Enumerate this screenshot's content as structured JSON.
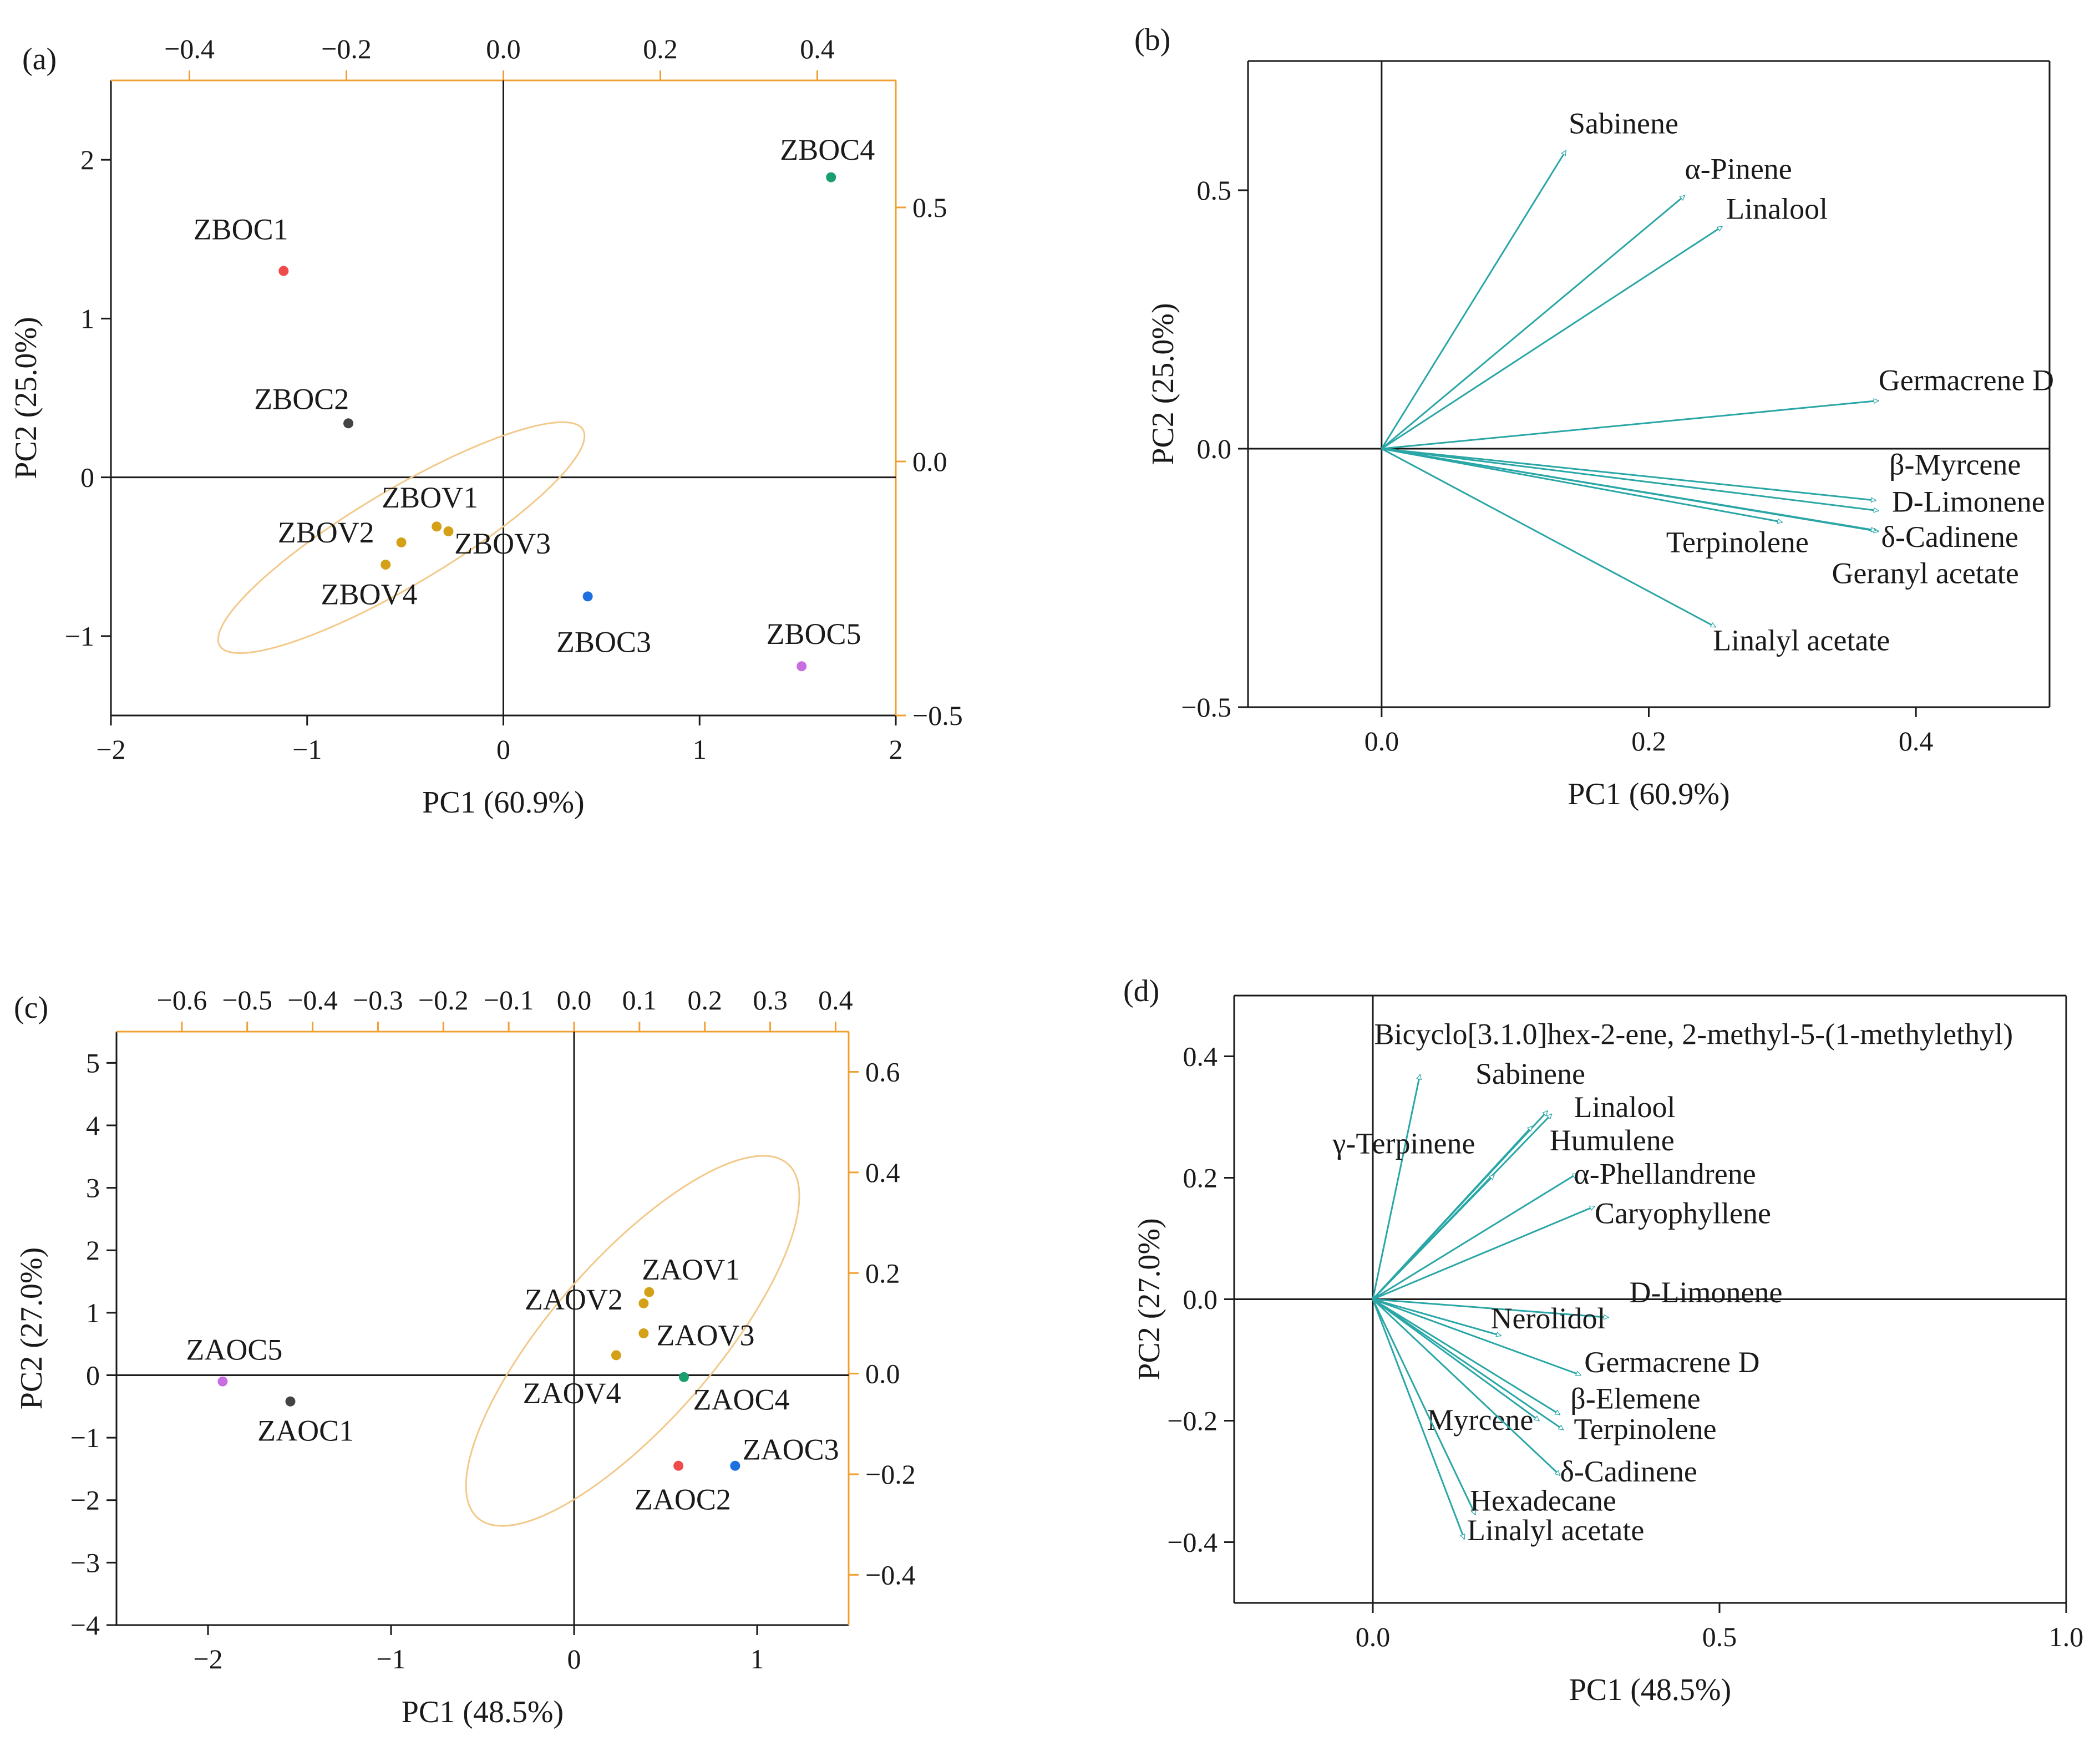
{
  "panels": [
    {
      "id": "a",
      "label": "(a)",
      "type": "biplot-scores",
      "xlabel": "PC1 (60.9%)",
      "ylabel": "PC2 (25.0%)",
      "xlim": [
        -2,
        2
      ],
      "ylim": [
        -1.5,
        2.5
      ],
      "xticks": [
        {
          "v": -2,
          "t": "−2"
        },
        {
          "v": -1,
          "t": "−1"
        },
        {
          "v": 0,
          "t": "0"
        },
        {
          "v": 1,
          "t": "1"
        },
        {
          "v": 2,
          "t": "2"
        }
      ],
      "yticks": [
        {
          "v": -1,
          "t": "−1"
        },
        {
          "v": 0,
          "t": "0"
        },
        {
          "v": 1,
          "t": "1"
        },
        {
          "v": 2,
          "t": "2"
        }
      ],
      "top_lim": [
        -0.5,
        0.5
      ],
      "top_ticks": [
        {
          "v": -0.4,
          "t": "−0.4"
        },
        {
          "v": -0.2,
          "t": "−0.2"
        },
        {
          "v": 0.0,
          "t": "0.0"
        },
        {
          "v": 0.2,
          "t": "0.2"
        },
        {
          "v": 0.4,
          "t": "0.4"
        }
      ],
      "right_lim": [
        -0.5,
        0.75
      ],
      "right_ticks": [
        {
          "v": -0.5,
          "t": "−0.5"
        },
        {
          "v": 0.0,
          "t": "0.0"
        },
        {
          "v": 0.5,
          "t": "0.5"
        }
      ],
      "ellipse": {
        "cx": -0.52,
        "cy": -0.38,
        "rx": 1.15,
        "ry": 0.28,
        "angle_deg": 37
      },
      "points": [
        {
          "name": "ZBOC1",
          "x": -1.12,
          "y": 1.3,
          "color": "#f04a4a",
          "lx": -1.58,
          "ly": 1.5
        },
        {
          "name": "ZBOC2",
          "x": -0.79,
          "y": 0.34,
          "color": "#444444",
          "lx": -1.27,
          "ly": 0.43
        },
        {
          "name": "ZBOV1",
          "x": -0.34,
          "y": -0.31,
          "color": "#d4a017",
          "lx": -0.62,
          "ly": -0.19
        },
        {
          "name": "ZBOV2",
          "x": -0.52,
          "y": -0.41,
          "color": "#d4a017",
          "lx": -1.15,
          "ly": -0.41
        },
        {
          "name": "ZBOV3",
          "x": -0.28,
          "y": -0.34,
          "color": "#d4a017",
          "lx": -0.25,
          "ly": -0.48
        },
        {
          "name": "ZBOV4",
          "x": -0.6,
          "y": -0.55,
          "color": "#d4a017",
          "lx": -0.93,
          "ly": -0.8
        },
        {
          "name": "ZBOC3",
          "x": 0.43,
          "y": -0.75,
          "color": "#1e6fe0",
          "lx": 0.27,
          "ly": -1.1
        },
        {
          "name": "ZBOC4",
          "x": 1.67,
          "y": 1.89,
          "color": "#1a9e6e",
          "lx": 1.41,
          "ly": 2.0
        },
        {
          "name": "ZBOC5",
          "x": 1.52,
          "y": -1.19,
          "color": "#c86ee0",
          "lx": 1.34,
          "ly": -1.05
        }
      ]
    },
    {
      "id": "b",
      "label": "(b)",
      "type": "biplot-loadings",
      "xlabel": "PC1 (60.9%)",
      "ylabel": "PC2 (25.0%)",
      "xlim": [
        -0.1,
        0.5
      ],
      "ylim": [
        -0.5,
        0.75
      ],
      "xticks": [
        {
          "v": 0.0,
          "t": "0.0"
        },
        {
          "v": 0.2,
          "t": "0.2"
        },
        {
          "v": 0.4,
          "t": "0.4"
        }
      ],
      "yticks": [
        {
          "v": -0.5,
          "t": "−0.5"
        },
        {
          "v": 0.0,
          "t": "0.0"
        },
        {
          "v": 0.5,
          "t": "0.5"
        }
      ],
      "vectors": [
        {
          "name": "Sabinene",
          "x": 0.138,
          "y": 0.577,
          "lx": 0.14,
          "ly": 0.61
        },
        {
          "name": "α-Pinene",
          "x": 0.227,
          "y": 0.49,
          "lx": 0.227,
          "ly": 0.522
        },
        {
          "name": "Linalool",
          "x": 0.255,
          "y": 0.43,
          "lx": 0.258,
          "ly": 0.445
        },
        {
          "name": "Germacrene D",
          "x": 0.372,
          "y": 0.093,
          "lx": 0.372,
          "ly": 0.113
        },
        {
          "name": "β-Myrcene",
          "x": 0.37,
          "y": -0.1,
          "lx": 0.38,
          "ly": -0.05
        },
        {
          "name": "D-Limonene",
          "x": 0.372,
          "y": -0.12,
          "lx": 0.382,
          "ly": -0.122
        },
        {
          "name": "δ-Cadinene",
          "x": 0.372,
          "y": -0.16,
          "lx": 0.374,
          "ly": -0.19
        },
        {
          "name": "Terpinolene",
          "x": 0.3,
          "y": -0.142,
          "lx": 0.213,
          "ly": -0.2
        },
        {
          "name": "Geranyl acetate",
          "x": 0.37,
          "y": -0.158,
          "lx": 0.337,
          "ly": -0.26
        },
        {
          "name": "Linalyl acetate",
          "x": 0.25,
          "y": -0.345,
          "lx": 0.248,
          "ly": -0.39
        }
      ]
    },
    {
      "id": "c",
      "label": "(c)",
      "type": "biplot-scores",
      "xlabel": "PC1 (48.5%)",
      "ylabel": "PC2 (27.0%)",
      "xlim": [
        -2.5,
        1.5
      ],
      "ylim": [
        -4,
        5.5
      ],
      "xticks": [
        {
          "v": -2,
          "t": "−2"
        },
        {
          "v": -1,
          "t": "−1"
        },
        {
          "v": 0,
          "t": "0"
        },
        {
          "v": 1,
          "t": "1"
        }
      ],
      "yticks": [
        {
          "v": -4,
          "t": "−4"
        },
        {
          "v": -3,
          "t": "−3"
        },
        {
          "v": -2,
          "t": "−2"
        },
        {
          "v": -1,
          "t": "−1"
        },
        {
          "v": 0,
          "t": "0"
        },
        {
          "v": 1,
          "t": "1"
        },
        {
          "v": 2,
          "t": "2"
        },
        {
          "v": 3,
          "t": "3"
        },
        {
          "v": 4,
          "t": "4"
        },
        {
          "v": 5,
          "t": "5"
        }
      ],
      "top_lim": [
        -0.7,
        0.42
      ],
      "top_ticks": [
        {
          "v": -0.6,
          "t": "−0.6"
        },
        {
          "v": -0.5,
          "t": "−0.5"
        },
        {
          "v": -0.4,
          "t": "−0.4"
        },
        {
          "v": -0.3,
          "t": "−0.3"
        },
        {
          "v": -0.2,
          "t": "−0.2"
        },
        {
          "v": -0.1,
          "t": "−0.1"
        },
        {
          "v": 0.0,
          "t": "0.0"
        },
        {
          "v": 0.1,
          "t": "0.1"
        },
        {
          "v": 0.2,
          "t": "0.2"
        },
        {
          "v": 0.3,
          "t": "0.3"
        },
        {
          "v": 0.4,
          "t": "0.4"
        }
      ],
      "right_lim": [
        -0.5,
        0.68
      ],
      "right_ticks": [
        {
          "v": -0.4,
          "t": "−0.4"
        },
        {
          "v": -0.2,
          "t": "−0.2"
        },
        {
          "v": 0.0,
          "t": "0.0"
        },
        {
          "v": 0.2,
          "t": "0.2"
        },
        {
          "v": 0.4,
          "t": "0.4"
        },
        {
          "v": 0.6,
          "t": "0.6"
        }
      ],
      "ellipse": {
        "cx": 0.32,
        "cy": 0.55,
        "rx": 3.05,
        "ry": 0.55,
        "angle_deg": 76
      },
      "points": [
        {
          "name": "ZAOC5",
          "x": -1.92,
          "y": -0.1,
          "color": "#c86ee0",
          "lx": -2.12,
          "ly": 0.25
        },
        {
          "name": "ZAOC1",
          "x": -1.55,
          "y": -0.42,
          "color": "#444444",
          "lx": -1.73,
          "ly": -1.05
        },
        {
          "name": "ZAOV1",
          "x": 0.41,
          "y": 1.33,
          "color": "#d4a017",
          "lx": 0.37,
          "ly": 1.53
        },
        {
          "name": "ZAOV2",
          "x": 0.38,
          "y": 1.15,
          "color": "#d4a017",
          "lx": -0.27,
          "ly": 1.05
        },
        {
          "name": "ZAOV3",
          "x": 0.38,
          "y": 0.67,
          "color": "#d4a017",
          "lx": 0.45,
          "ly": 0.48
        },
        {
          "name": "ZAOV4",
          "x": 0.23,
          "y": 0.32,
          "color": "#d4a017",
          "lx": -0.28,
          "ly": -0.45
        },
        {
          "name": "ZAOC4",
          "x": 0.6,
          "y": -0.03,
          "color": "#1a9e6e",
          "lx": 0.65,
          "ly": -0.55
        },
        {
          "name": "ZAOC2",
          "x": 0.57,
          "y": -1.45,
          "color": "#f04a4a",
          "lx": 0.33,
          "ly": -2.15
        },
        {
          "name": "ZAOC3",
          "x": 0.88,
          "y": -1.45,
          "color": "#1e6fe0",
          "lx": 0.92,
          "ly": -1.35
        }
      ]
    },
    {
      "id": "d",
      "label": "(d)",
      "type": "biplot-loadings",
      "xlabel": "PC1 (48.5%)",
      "ylabel": "PC2 (27.0%)",
      "xlim": [
        -0.2,
        1.0
      ],
      "ylim": [
        -0.5,
        0.5
      ],
      "xticks": [
        {
          "v": 0.0,
          "t": "0.0"
        },
        {
          "v": 0.5,
          "t": "0.5"
        },
        {
          "v": 1.0,
          "t": "1.0"
        }
      ],
      "yticks": [
        {
          "v": -0.4,
          "t": "−0.4"
        },
        {
          "v": -0.2,
          "t": "−0.2"
        },
        {
          "v": 0.0,
          "t": "0.0"
        },
        {
          "v": 0.2,
          "t": "0.2"
        },
        {
          "v": 0.4,
          "t": "0.4"
        }
      ],
      "vectors": [
        {
          "name": "Bicyclo[3.1.0]hex-2-ene, 2-methyl-5-(1-methylethyl)",
          "x": 0.068,
          "y": 0.37,
          "lx": 0.002,
          "ly": 0.42
        },
        {
          "name": "Sabinene",
          "x": 0.258,
          "y": 0.305,
          "lx": 0.148,
          "ly": 0.355
        },
        {
          "name": "Linalool",
          "x": 0.252,
          "y": 0.31,
          "lx": 0.29,
          "ly": 0.3
        },
        {
          "name": "Humulene",
          "x": 0.23,
          "y": 0.285,
          "lx": 0.255,
          "ly": 0.245
        },
        {
          "name": "γ-Terpinene",
          "x": 0.175,
          "y": 0.205,
          "lx": -0.058,
          "ly": 0.24
        },
        {
          "name": "α-Phellandrene",
          "x": 0.295,
          "y": 0.207,
          "lx": 0.29,
          "ly": 0.19
        },
        {
          "name": "Caryophyllene",
          "x": 0.32,
          "y": 0.153,
          "lx": 0.32,
          "ly": 0.125
        },
        {
          "name": "D-Limonene",
          "x": 0.34,
          "y": -0.03,
          "lx": 0.37,
          "ly": -0.005
        },
        {
          "name": "Nerolidol",
          "x": 0.185,
          "y": -0.06,
          "lx": 0.17,
          "ly": -0.048
        },
        {
          "name": "Germacrene D",
          "x": 0.3,
          "y": -0.125,
          "lx": 0.305,
          "ly": -0.12
        },
        {
          "name": "β-Elemene",
          "x": 0.27,
          "y": -0.19,
          "lx": 0.285,
          "ly": -0.18
        },
        {
          "name": "Terpinolene",
          "x": 0.275,
          "y": -0.215,
          "lx": 0.29,
          "ly": -0.23
        },
        {
          "name": "Myrcene",
          "x": 0.24,
          "y": -0.2,
          "lx": 0.078,
          "ly": -0.215
        },
        {
          "name": "δ-Cadinene",
          "x": 0.27,
          "y": -0.29,
          "lx": 0.27,
          "ly": -0.3
        },
        {
          "name": "Hexadecane",
          "x": 0.148,
          "y": -0.355,
          "lx": 0.14,
          "ly": -0.348
        },
        {
          "name": "Linalyl acetate",
          "x": 0.132,
          "y": -0.395,
          "lx": 0.136,
          "ly": -0.397
        }
      ]
    }
  ]
}
